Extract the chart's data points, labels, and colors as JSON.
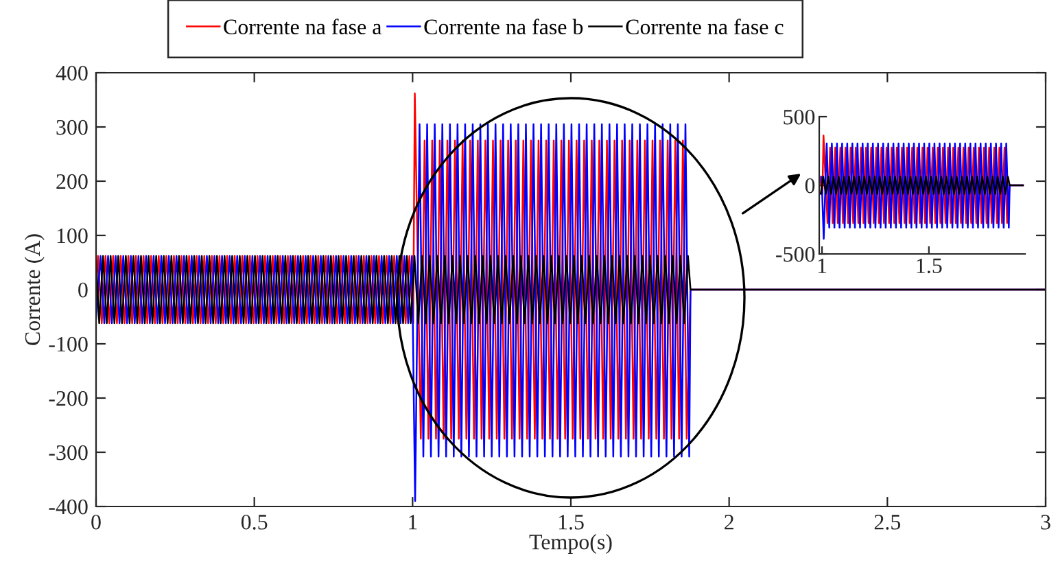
{
  "chart_data": [
    {
      "type": "line",
      "xlabel": "Tempo(s)",
      "ylabel": "Corrente (A)",
      "legend": "top",
      "xlim": [
        0,
        3
      ],
      "xticks": [
        0,
        0.5,
        1,
        1.5,
        2,
        2.5,
        3
      ],
      "ylim": [
        -400,
        400
      ],
      "yticks": [
        -400,
        -300,
        -200,
        -100,
        0,
        100,
        200,
        300,
        400
      ],
      "series": [
        {
          "name": "Corrente na fase a",
          "color": "#ff0000",
          "x": [
            0,
            0.006,
            0.018,
            0.03,
            0.042,
            0.054,
            0.066,
            0.078,
            0.09,
            0.102,
            0.114,
            0.126,
            0.138,
            0.15,
            0.162,
            0.174,
            0.186,
            0.198,
            0.21,
            0.222,
            0.234,
            0.246,
            0.258,
            0.27,
            0.282,
            0.294,
            0.306,
            0.318,
            0.33,
            0.342,
            0.354,
            0.366,
            0.378,
            0.39,
            0.402,
            0.414,
            0.426,
            0.438,
            0.45,
            0.462,
            0.474,
            0.486,
            0.498,
            0.51,
            0.522,
            0.534,
            0.546,
            0.558,
            0.57,
            0.582,
            0.594,
            0.606,
            0.618,
            0.63,
            0.642,
            0.654,
            0.666,
            0.678,
            0.69,
            0.702,
            0.714,
            0.726,
            0.738,
            0.75,
            0.762,
            0.774,
            0.786,
            0.798,
            0.81,
            0.822,
            0.834,
            0.846,
            0.858,
            0.87,
            0.882,
            0.894,
            0.906,
            0.918,
            0.93,
            0.942,
            0.954,
            0.966,
            0.978,
            0.99,
            1.002,
            1.007,
            1.026,
            1.038,
            1.05,
            1.062,
            1.074,
            1.086,
            1.098,
            1.11,
            1.122,
            1.134,
            1.146,
            1.158,
            1.17,
            1.182,
            1.194,
            1.206,
            1.218,
            1.23,
            1.242,
            1.254,
            1.266,
            1.278,
            1.29,
            1.302,
            1.314,
            1.326,
            1.338,
            1.35,
            1.362,
            1.374,
            1.386,
            1.398,
            1.41,
            1.422,
            1.434,
            1.446,
            1.458,
            1.47,
            1.482,
            1.494,
            1.506,
            1.518,
            1.53,
            1.542,
            1.554,
            1.566,
            1.578,
            1.59,
            1.602,
            1.614,
            1.626,
            1.638,
            1.65,
            1.662,
            1.674,
            1.686,
            1.698,
            1.71,
            1.722,
            1.734,
            1.746,
            1.758,
            1.77,
            1.782,
            1.794,
            1.806,
            1.818,
            1.83,
            1.842,
            1.854,
            1.866,
            1.878,
            3
          ],
          "values": [
            0,
            62,
            -62,
            62,
            -62,
            62,
            -62,
            62,
            -62,
            62,
            -62,
            62,
            -62,
            62,
            -62,
            62,
            -62,
            62,
            -62,
            62,
            -62,
            62,
            -62,
            62,
            -62,
            62,
            -62,
            62,
            -62,
            62,
            -62,
            62,
            -62,
            62,
            -62,
            62,
            -62,
            62,
            -62,
            62,
            -62,
            62,
            -62,
            62,
            -62,
            62,
            -62,
            62,
            -62,
            62,
            -62,
            62,
            -62,
            62,
            -62,
            62,
            -62,
            62,
            -62,
            62,
            -62,
            62,
            -62,
            62,
            -62,
            62,
            -62,
            62,
            -62,
            62,
            -62,
            62,
            -62,
            62,
            -62,
            62,
            -62,
            62,
            -62,
            62,
            -62,
            62,
            -62,
            62,
            -62,
            362,
            -275,
            275,
            -275,
            275,
            -275,
            275,
            -275,
            275,
            -275,
            275,
            -275,
            275,
            -275,
            275,
            -275,
            275,
            -275,
            275,
            -275,
            275,
            -275,
            275,
            -275,
            275,
            -275,
            275,
            -275,
            275,
            -275,
            275,
            -275,
            275,
            -275,
            275,
            -275,
            275,
            -275,
            275,
            -275,
            275,
            -275,
            275,
            -275,
            275,
            -275,
            275,
            -275,
            275,
            -275,
            275,
            -275,
            275,
            -275,
            275,
            -275,
            275,
            -275,
            275,
            -275,
            275,
            -275,
            275,
            -275,
            275,
            -275,
            275,
            -275,
            275,
            -275,
            275,
            -275,
            0,
            0
          ]
        },
        {
          "name": "Corrente na fase b",
          "color": "#0000ff",
          "x": [
            0,
            0.014,
            0.026,
            0.038,
            0.05,
            0.062,
            0.074,
            0.086,
            0.098,
            0.11,
            0.122,
            0.134,
            0.146,
            0.158,
            0.17,
            0.182,
            0.194,
            0.206,
            0.218,
            0.23,
            0.242,
            0.254,
            0.266,
            0.278,
            0.29,
            0.302,
            0.314,
            0.326,
            0.338,
            0.35,
            0.362,
            0.374,
            0.386,
            0.398,
            0.41,
            0.422,
            0.434,
            0.446,
            0.458,
            0.47,
            0.482,
            0.494,
            0.506,
            0.518,
            0.53,
            0.542,
            0.554,
            0.566,
            0.578,
            0.59,
            0.602,
            0.614,
            0.626,
            0.638,
            0.65,
            0.662,
            0.674,
            0.686,
            0.698,
            0.71,
            0.722,
            0.734,
            0.746,
            0.758,
            0.77,
            0.782,
            0.794,
            0.806,
            0.818,
            0.83,
            0.842,
            0.854,
            0.866,
            0.878,
            0.89,
            0.902,
            0.914,
            0.926,
            0.938,
            0.95,
            0.962,
            0.974,
            0.986,
            0.998,
            1.008,
            1.022,
            1.034,
            1.046,
            1.058,
            1.07,
            1.082,
            1.094,
            1.106,
            1.118,
            1.13,
            1.142,
            1.154,
            1.166,
            1.178,
            1.19,
            1.202,
            1.214,
            1.226,
            1.238,
            1.25,
            1.262,
            1.274,
            1.286,
            1.298,
            1.31,
            1.322,
            1.334,
            1.346,
            1.358,
            1.37,
            1.382,
            1.394,
            1.406,
            1.418,
            1.43,
            1.442,
            1.454,
            1.466,
            1.478,
            1.49,
            1.502,
            1.514,
            1.526,
            1.538,
            1.55,
            1.562,
            1.574,
            1.586,
            1.598,
            1.61,
            1.622,
            1.634,
            1.646,
            1.658,
            1.67,
            1.682,
            1.694,
            1.706,
            1.718,
            1.73,
            1.742,
            1.754,
            1.766,
            1.778,
            1.79,
            1.802,
            1.814,
            1.826,
            1.838,
            1.85,
            1.862,
            1.874,
            1.878,
            3
          ],
          "values": [
            -54,
            62,
            -62,
            62,
            -62,
            62,
            -62,
            62,
            -62,
            62,
            -62,
            62,
            -62,
            62,
            -62,
            62,
            -62,
            62,
            -62,
            62,
            -62,
            62,
            -62,
            62,
            -62,
            62,
            -62,
            62,
            -62,
            62,
            -62,
            62,
            -62,
            62,
            -62,
            62,
            -62,
            62,
            -62,
            62,
            -62,
            62,
            -62,
            62,
            -62,
            62,
            -62,
            62,
            -62,
            62,
            -62,
            62,
            -62,
            62,
            -62,
            62,
            -62,
            62,
            -62,
            62,
            -62,
            62,
            -62,
            62,
            -62,
            62,
            -62,
            62,
            -62,
            62,
            -62,
            62,
            -62,
            62,
            -62,
            62,
            -62,
            62,
            -62,
            62,
            -62,
            62,
            -62,
            62,
            -390,
            305,
            -308,
            305,
            -308,
            305,
            -308,
            305,
            -308,
            305,
            -308,
            305,
            -308,
            305,
            -308,
            305,
            -308,
            305,
            -308,
            305,
            -308,
            305,
            -308,
            305,
            -308,
            305,
            -308,
            305,
            -308,
            305,
            -308,
            305,
            -308,
            305,
            -308,
            305,
            -308,
            305,
            -308,
            305,
            -308,
            305,
            -308,
            305,
            -308,
            305,
            -308,
            305,
            -308,
            305,
            -308,
            305,
            -308,
            305,
            -308,
            305,
            -308,
            305,
            -308,
            305,
            -308,
            305,
            -308,
            305,
            -308,
            305,
            -308,
            305,
            -308,
            305,
            -308,
            305,
            -308,
            0,
            0
          ]
        },
        {
          "name": "Corrente na fase c",
          "color": "#000000",
          "x": [
            0,
            0.01,
            0.022,
            0.034,
            0.046,
            0.058,
            0.07,
            0.082,
            0.094,
            0.106,
            0.118,
            0.13,
            0.142,
            0.154,
            0.166,
            0.178,
            0.19,
            0.202,
            0.214,
            0.226,
            0.238,
            0.25,
            0.262,
            0.274,
            0.286,
            0.298,
            0.31,
            0.322,
            0.334,
            0.346,
            0.358,
            0.37,
            0.382,
            0.394,
            0.406,
            0.418,
            0.43,
            0.442,
            0.454,
            0.466,
            0.478,
            0.49,
            0.502,
            0.514,
            0.526,
            0.538,
            0.55,
            0.562,
            0.574,
            0.586,
            0.598,
            0.61,
            0.622,
            0.634,
            0.646,
            0.658,
            0.67,
            0.682,
            0.694,
            0.706,
            0.718,
            0.73,
            0.742,
            0.754,
            0.766,
            0.778,
            0.79,
            0.802,
            0.814,
            0.826,
            0.838,
            0.85,
            0.862,
            0.874,
            0.886,
            0.898,
            0.91,
            0.922,
            0.934,
            0.946,
            0.958,
            0.97,
            0.982,
            0.994,
            1.006,
            1.018,
            1.03,
            1.042,
            1.054,
            1.066,
            1.078,
            1.09,
            1.102,
            1.114,
            1.126,
            1.138,
            1.15,
            1.162,
            1.174,
            1.186,
            1.198,
            1.21,
            1.222,
            1.234,
            1.246,
            1.258,
            1.27,
            1.282,
            1.294,
            1.306,
            1.318,
            1.33,
            1.342,
            1.354,
            1.366,
            1.378,
            1.39,
            1.402,
            1.414,
            1.426,
            1.438,
            1.45,
            1.462,
            1.474,
            1.486,
            1.498,
            1.51,
            1.522,
            1.534,
            1.546,
            1.558,
            1.57,
            1.582,
            1.594,
            1.606,
            1.618,
            1.63,
            1.642,
            1.654,
            1.666,
            1.678,
            1.69,
            1.702,
            1.714,
            1.726,
            1.738,
            1.75,
            1.762,
            1.774,
            1.786,
            1.798,
            1.81,
            1.822,
            1.834,
            1.846,
            1.858,
            1.87,
            1.878,
            3
          ],
          "values": [
            54,
            -62,
            62,
            -62,
            62,
            -62,
            62,
            -62,
            62,
            -62,
            62,
            -62,
            62,
            -62,
            62,
            -62,
            62,
            -62,
            62,
            -62,
            62,
            -62,
            62,
            -62,
            62,
            -62,
            62,
            -62,
            62,
            -62,
            62,
            -62,
            62,
            -62,
            62,
            -62,
            62,
            -62,
            62,
            -62,
            62,
            -62,
            62,
            -62,
            62,
            -62,
            62,
            -62,
            62,
            -62,
            62,
            -62,
            62,
            -62,
            62,
            -62,
            62,
            -62,
            62,
            -62,
            62,
            -62,
            62,
            -62,
            62,
            -62,
            62,
            -62,
            62,
            -62,
            62,
            -62,
            62,
            -62,
            62,
            -62,
            62,
            -62,
            62,
            -62,
            62,
            -62,
            62,
            -62,
            62,
            -62,
            62,
            -62,
            62,
            -62,
            62,
            -62,
            62,
            -62,
            62,
            -62,
            62,
            -62,
            62,
            -62,
            62,
            -62,
            62,
            -62,
            62,
            -62,
            62,
            -62,
            62,
            -62,
            62,
            -62,
            62,
            -62,
            62,
            -62,
            62,
            -62,
            62,
            -62,
            62,
            -62,
            62,
            -62,
            62,
            -62,
            62,
            -62,
            62,
            -62,
            62,
            -62,
            62,
            -62,
            62,
            -62,
            62,
            -62,
            62,
            -62,
            62,
            -62,
            62,
            -62,
            62,
            -62,
            62,
            -62,
            62,
            -62,
            62,
            -62,
            62,
            -62,
            62,
            -62,
            62,
            0,
            0
          ]
        }
      ]
    },
    {
      "type": "line",
      "xlim": [
        0.987,
        1.95
      ],
      "xticks": [
        1,
        1.5
      ],
      "ylim": [
        -500,
        500
      ],
      "yticks": [
        -500,
        0,
        500
      ],
      "series": [
        {
          "color": "#ff0000",
          "x": [
            0.99,
            1.002,
            1.007,
            1.026,
            1.038,
            1.05,
            1.062,
            1.074,
            1.086,
            1.098,
            1.11,
            1.122,
            1.134,
            1.146,
            1.158,
            1.17,
            1.182,
            1.194,
            1.206,
            1.218,
            1.23,
            1.242,
            1.254,
            1.266,
            1.278,
            1.29,
            1.302,
            1.314,
            1.326,
            1.338,
            1.35,
            1.362,
            1.374,
            1.386,
            1.398,
            1.41,
            1.422,
            1.434,
            1.446,
            1.458,
            1.47,
            1.482,
            1.494,
            1.506,
            1.518,
            1.53,
            1.542,
            1.554,
            1.566,
            1.578,
            1.59,
            1.602,
            1.614,
            1.626,
            1.638,
            1.65,
            1.662,
            1.674,
            1.686,
            1.698,
            1.71,
            1.722,
            1.734,
            1.746,
            1.758,
            1.77,
            1.782,
            1.794,
            1.806,
            1.818,
            1.83,
            1.842,
            1.854,
            1.866,
            1.878,
            1.94
          ],
          "values": [
            62,
            -62,
            362,
            -275,
            275,
            -275,
            275,
            -275,
            275,
            -275,
            275,
            -275,
            275,
            -275,
            275,
            -275,
            275,
            -275,
            275,
            -275,
            275,
            -275,
            275,
            -275,
            275,
            -275,
            275,
            -275,
            275,
            -275,
            275,
            -275,
            275,
            -275,
            275,
            -275,
            275,
            -275,
            275,
            -275,
            275,
            -275,
            275,
            -275,
            275,
            -275,
            275,
            -275,
            275,
            -275,
            275,
            -275,
            275,
            -275,
            275,
            -275,
            275,
            -275,
            275,
            -275,
            275,
            -275,
            275,
            -275,
            275,
            -275,
            275,
            -275,
            275,
            -275,
            275,
            -275,
            275,
            -275,
            0,
            0
          ]
        },
        {
          "color": "#0000ff",
          "x": [
            0.998,
            1.008,
            1.022,
            1.034,
            1.046,
            1.058,
            1.07,
            1.082,
            1.094,
            1.106,
            1.118,
            1.13,
            1.142,
            1.154,
            1.166,
            1.178,
            1.19,
            1.202,
            1.214,
            1.226,
            1.238,
            1.25,
            1.262,
            1.274,
            1.286,
            1.298,
            1.31,
            1.322,
            1.334,
            1.346,
            1.358,
            1.37,
            1.382,
            1.394,
            1.406,
            1.418,
            1.43,
            1.442,
            1.454,
            1.466,
            1.478,
            1.49,
            1.502,
            1.514,
            1.526,
            1.538,
            1.55,
            1.562,
            1.574,
            1.586,
            1.598,
            1.61,
            1.622,
            1.634,
            1.646,
            1.658,
            1.67,
            1.682,
            1.694,
            1.706,
            1.718,
            1.73,
            1.742,
            1.754,
            1.766,
            1.778,
            1.79,
            1.802,
            1.814,
            1.826,
            1.838,
            1.85,
            1.862,
            1.874,
            1.878,
            1.94
          ],
          "values": [
            62,
            -390,
            305,
            -308,
            305,
            -308,
            305,
            -308,
            305,
            -308,
            305,
            -308,
            305,
            -308,
            305,
            -308,
            305,
            -308,
            305,
            -308,
            305,
            -308,
            305,
            -308,
            305,
            -308,
            305,
            -308,
            305,
            -308,
            305,
            -308,
            305,
            -308,
            305,
            -308,
            305,
            -308,
            305,
            -308,
            305,
            -308,
            305,
            -308,
            305,
            -308,
            305,
            -308,
            305,
            -308,
            305,
            -308,
            305,
            -308,
            305,
            -308,
            305,
            -308,
            305,
            -308,
            305,
            -308,
            305,
            -308,
            305,
            -308,
            305,
            -308,
            305,
            -308,
            305,
            -308,
            305,
            -308,
            0,
            0
          ]
        },
        {
          "color": "#000000",
          "x": [
            0.994,
            1.006,
            1.018,
            1.03,
            1.042,
            1.054,
            1.066,
            1.078,
            1.09,
            1.102,
            1.114,
            1.126,
            1.138,
            1.15,
            1.162,
            1.174,
            1.186,
            1.198,
            1.21,
            1.222,
            1.234,
            1.246,
            1.258,
            1.27,
            1.282,
            1.294,
            1.306,
            1.318,
            1.33,
            1.342,
            1.354,
            1.366,
            1.378,
            1.39,
            1.402,
            1.414,
            1.426,
            1.438,
            1.45,
            1.462,
            1.474,
            1.486,
            1.498,
            1.51,
            1.522,
            1.534,
            1.546,
            1.558,
            1.57,
            1.582,
            1.594,
            1.606,
            1.618,
            1.63,
            1.642,
            1.654,
            1.666,
            1.678,
            1.69,
            1.702,
            1.714,
            1.726,
            1.738,
            1.75,
            1.762,
            1.774,
            1.786,
            1.798,
            1.81,
            1.822,
            1.834,
            1.846,
            1.858,
            1.87,
            1.878,
            1.94
          ],
          "values": [
            -62,
            62,
            -62,
            62,
            -62,
            62,
            -62,
            62,
            -62,
            62,
            -62,
            62,
            -62,
            62,
            -62,
            62,
            -62,
            62,
            -62,
            62,
            -62,
            62,
            -62,
            62,
            -62,
            62,
            -62,
            62,
            -62,
            62,
            -62,
            62,
            -62,
            62,
            -62,
            62,
            -62,
            62,
            -62,
            62,
            -62,
            62,
            -62,
            62,
            -62,
            62,
            -62,
            62,
            -62,
            62,
            -62,
            62,
            -62,
            62,
            -62,
            62,
            -62,
            62,
            -62,
            62,
            -62,
            62,
            -62,
            62,
            -62,
            62,
            -62,
            62,
            -62,
            62,
            -62,
            62,
            -62,
            62,
            0,
            0
          ]
        }
      ]
    }
  ]
}
